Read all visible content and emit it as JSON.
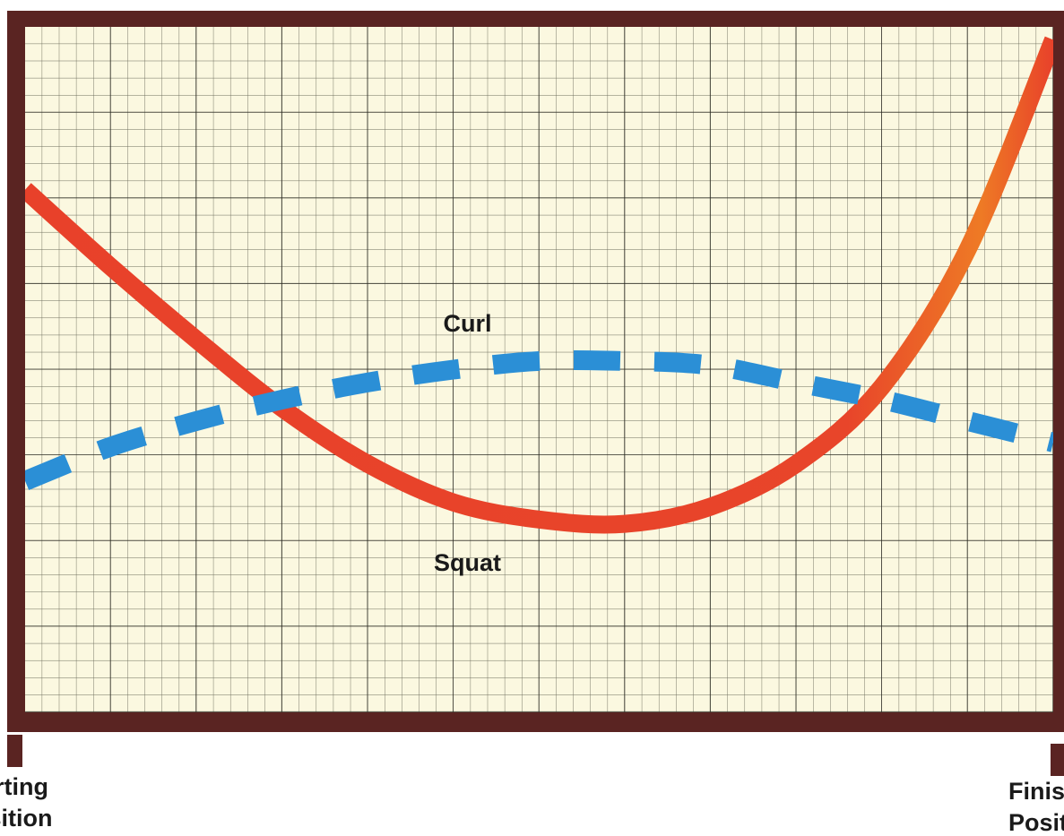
{
  "chart_data": {
    "type": "line",
    "x": [
      0,
      1,
      2,
      3,
      4,
      5,
      6,
      7,
      8,
      9,
      10,
      11,
      12
    ],
    "xlim": [
      0,
      12
    ],
    "ylim": [
      0,
      8
    ],
    "series": [
      {
        "name": "Squat",
        "color": "#e8412a",
        "style": "solid",
        "values": [
          6.1,
          5.2,
          4.35,
          3.55,
          2.9,
          2.45,
          2.25,
          2.2,
          2.4,
          2.9,
          3.8,
          5.4,
          7.85
        ]
      },
      {
        "name": "Curl",
        "color": "#2b8fd6",
        "style": "dashed",
        "values": [
          2.7,
          3.1,
          3.4,
          3.65,
          3.85,
          4.0,
          4.1,
          4.1,
          4.05,
          3.85,
          3.65,
          3.4,
          3.15
        ]
      }
    ],
    "start_label": [
      "Starting",
      "Position"
    ],
    "end_label": [
      "Finishing",
      "Position"
    ]
  }
}
